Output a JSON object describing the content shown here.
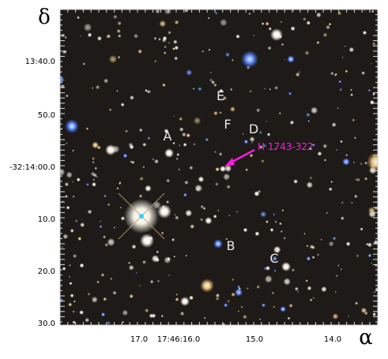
{
  "axes": {
    "y_label": "δ",
    "x_label": "α",
    "y_ticks": [
      "13:40.0",
      "50.0",
      "-32:14:00.0",
      "10.0",
      "20.0",
      "30.0"
    ],
    "x_ticks": [
      "17.0",
      "17:46:16.0",
      "15.0",
      "14.0"
    ]
  },
  "labels": [
    "A",
    "B",
    "C",
    "D",
    "E",
    "F"
  ],
  "target": "H 1743-322"
}
